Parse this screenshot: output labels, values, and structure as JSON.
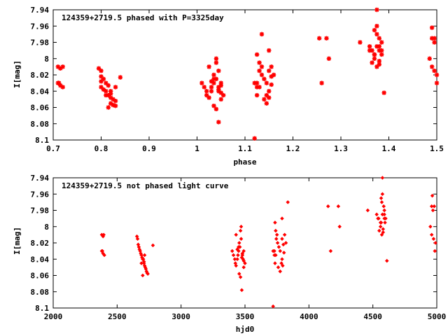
{
  "chart_data": [
    {
      "type": "scatter",
      "title": "124359+2719.5 phased with P=3325day",
      "xlabel": "phase",
      "ylabel": "I[mag]",
      "xlim": [
        0.7,
        1.5
      ],
      "ylim": [
        7.94,
        8.1
      ],
      "y_inverted": true,
      "grid": false,
      "x_ticks": [
        "0.7",
        "0.8",
        "0.9",
        "1",
        "1.1",
        "1.2",
        "1.3",
        "1.4",
        "1.5"
      ],
      "y_ticks": [
        "7.94",
        "7.96",
        "7.98",
        "8",
        "8.02",
        "8.04",
        "8.06",
        "8.08",
        "8.1"
      ],
      "marker": "star",
      "color": "#ff0000",
      "x": [
        0.71,
        0.715,
        0.72,
        0.71,
        0.715,
        0.72,
        0.712,
        0.795,
        0.8,
        0.8,
        0.805,
        0.8,
        0.81,
        0.815,
        0.8,
        0.805,
        0.81,
        0.82,
        0.815,
        0.82,
        0.825,
        0.83,
        0.82,
        0.825,
        0.83,
        0.815,
        0.82,
        0.83,
        0.81,
        0.84,
        1.01,
        1.015,
        1.02,
        1.02,
        1.025,
        1.03,
        1.03,
        1.035,
        1.04,
        1.035,
        1.045,
        1.04,
        1.05,
        1.045,
        1.05,
        1.055,
        1.05,
        1.035,
        1.04,
        1.045,
        1.025,
        1.03,
        1.04,
        1.045,
        1.05,
        1.035,
        1.045,
        1.12,
        1.125,
        1.13,
        1.135,
        1.125,
        1.13,
        1.135,
        1.14,
        1.145,
        1.15,
        1.145,
        1.15,
        1.155,
        1.16,
        1.155,
        1.15,
        1.14,
        1.145,
        1.12,
        1.125,
        1.13,
        1.15,
        1.155,
        1.135,
        1.125,
        1.255,
        1.26,
        1.27,
        1.275,
        1.34,
        1.36,
        1.365,
        1.37,
        1.375,
        1.375,
        1.38,
        1.38,
        1.385,
        1.37,
        1.365,
        1.375,
        1.38,
        1.37,
        1.385,
        1.375,
        1.37,
        1.38,
        1.36,
        1.385,
        1.39,
        1.375,
        1.38,
        1.485,
        1.49,
        1.49,
        1.495,
        1.49,
        1.495,
        1.5,
        1.5,
        1.495
      ],
      "y": [
        8.01,
        8.012,
        8.01,
        8.03,
        8.033,
        8.035,
        8.03,
        8.012,
        8.015,
        8.022,
        8.025,
        8.028,
        8.03,
        8.033,
        8.035,
        8.038,
        8.04,
        8.04,
        8.045,
        8.048,
        8.05,
        8.052,
        8.055,
        8.057,
        8.058,
        8.06,
        8.043,
        8.035,
        8.045,
        8.023,
        8.03,
        8.035,
        8.04,
        8.045,
        8.048,
        8.04,
        8.035,
        8.03,
        8.025,
        8.02,
        8.015,
        8.005,
        8.033,
        8.038,
        8.042,
        8.045,
        8.05,
        8.058,
        8.062,
        8.078,
        8.01,
        8.028,
        8.0,
        8.035,
        8.03,
        8.025,
        8.04,
        8.03,
        8.035,
        8.005,
        8.01,
        7.995,
        8.015,
        8.02,
        8.025,
        8.03,
        8.04,
        8.045,
        8.048,
        8.032,
        8.02,
        8.01,
        7.99,
        8.05,
        8.055,
        8.098,
        8.03,
        8.035,
        8.015,
        8.022,
        7.97,
        8.045,
        7.975,
        8.03,
        7.975,
        8.0,
        7.98,
        7.985,
        7.99,
        7.995,
        7.97,
        7.96,
        7.975,
        7.985,
        7.99,
        8.0,
        8.005,
        8.01,
        8.007,
        7.965,
        7.98,
        7.94,
        7.995,
        8.003,
        7.99,
        7.995,
        8.042,
        7.985,
        7.99,
        8.0,
        7.962,
        7.975,
        7.98,
        8.01,
        8.015,
        8.02,
        8.03,
        7.975
      ]
    },
    {
      "type": "scatter",
      "title": "124359+2719.5 not phased light curve",
      "xlabel": "hjd0",
      "ylabel": "I[mag]",
      "xlim": [
        2000,
        5000
      ],
      "ylim": [
        7.94,
        8.1
      ],
      "y_inverted": true,
      "grid": false,
      "x_ticks": [
        "2000",
        "2500",
        "3000",
        "3500",
        "4000",
        "4500",
        "5000"
      ],
      "y_ticks": [
        "7.94",
        "7.96",
        "7.98",
        "8",
        "8.02",
        "8.04",
        "8.06",
        "8.08",
        "8.1"
      ],
      "marker": "diamond",
      "color": "#ff0000",
      "x": [
        2380,
        2390,
        2395,
        2380,
        2390,
        2400,
        2385,
        2655,
        2660,
        2665,
        2670,
        2675,
        2680,
        2685,
        2690,
        2695,
        2700,
        2705,
        2710,
        2715,
        2720,
        2725,
        2730,
        2735,
        2740,
        2700,
        2710,
        2715,
        2690,
        2780,
        3400,
        3410,
        3420,
        3425,
        3430,
        3440,
        3445,
        3450,
        3460,
        3455,
        3470,
        3465,
        3480,
        3475,
        3490,
        3500,
        3490,
        3455,
        3465,
        3475,
        3430,
        3440,
        3470,
        3480,
        3490,
        3450,
        3485,
        3720,
        3730,
        3740,
        3750,
        3735,
        3745,
        3755,
        3765,
        3775,
        3790,
        3785,
        3795,
        3805,
        3820,
        3810,
        3790,
        3760,
        3775,
        3720,
        3730,
        3740,
        3790,
        3800,
        3835,
        3735,
        4150,
        4170,
        4230,
        4240,
        4460,
        4530,
        4545,
        4560,
        4570,
        4575,
        4585,
        4590,
        4600,
        4560,
        4550,
        4570,
        4580,
        4565,
        4590,
        4575,
        4565,
        4580,
        4540,
        4595,
        4610,
        4575,
        4590,
        4950,
        4965,
        4960,
        4970,
        4960,
        4975,
        4990,
        4985,
        4980
      ],
      "y": [
        8.01,
        8.012,
        8.01,
        8.03,
        8.033,
        8.035,
        8.03,
        8.012,
        8.015,
        8.022,
        8.025,
        8.028,
        8.03,
        8.033,
        8.035,
        8.038,
        8.04,
        8.04,
        8.045,
        8.048,
        8.05,
        8.052,
        8.055,
        8.057,
        8.058,
        8.06,
        8.043,
        8.035,
        8.045,
        8.023,
        8.03,
        8.035,
        8.04,
        8.045,
        8.048,
        8.04,
        8.035,
        8.03,
        8.025,
        8.02,
        8.015,
        8.005,
        8.033,
        8.038,
        8.042,
        8.045,
        8.05,
        8.058,
        8.062,
        8.078,
        8.01,
        8.028,
        8.0,
        8.035,
        8.03,
        8.025,
        8.04,
        8.03,
        8.035,
        8.005,
        8.01,
        7.995,
        8.015,
        8.02,
        8.025,
        8.03,
        8.04,
        8.045,
        8.048,
        8.032,
        8.02,
        8.01,
        7.99,
        8.05,
        8.055,
        8.098,
        8.03,
        8.035,
        8.015,
        8.022,
        7.97,
        8.045,
        7.975,
        8.03,
        7.975,
        8.0,
        7.98,
        7.985,
        7.99,
        7.995,
        7.97,
        7.96,
        7.975,
        7.985,
        7.99,
        8.0,
        8.005,
        8.01,
        8.007,
        7.965,
        7.98,
        7.94,
        7.995,
        8.003,
        7.99,
        7.995,
        8.042,
        7.985,
        7.99,
        8.0,
        7.962,
        7.975,
        7.98,
        8.01,
        8.015,
        8.02,
        8.03,
        7.975
      ]
    }
  ]
}
